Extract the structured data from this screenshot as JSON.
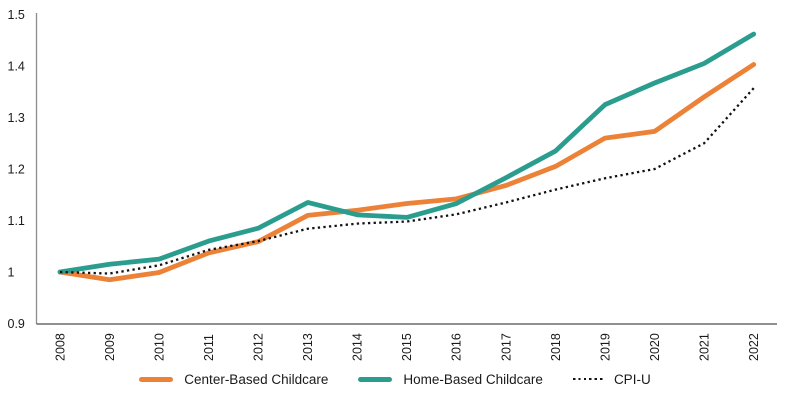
{
  "chart_data": {
    "type": "line",
    "title": "",
    "xlabel": "",
    "ylabel": "",
    "grid": false,
    "legend_position": "bottom",
    "x": [
      2008,
      2009,
      2010,
      2011,
      2012,
      2013,
      2014,
      2015,
      2016,
      2017,
      2018,
      2019,
      2020,
      2021,
      2022
    ],
    "ylim": [
      0.9,
      1.5
    ],
    "yticks": [
      {
        "value": 0.9,
        "label": "0.9"
      },
      {
        "value": 1.0,
        "label": "1"
      },
      {
        "value": 1.1,
        "label": "1.1"
      },
      {
        "value": 1.2,
        "label": "1.2"
      },
      {
        "value": 1.3,
        "label": "1.3"
      },
      {
        "value": 1.4,
        "label": "1.4"
      },
      {
        "value": 1.5,
        "label": "1.5"
      }
    ],
    "series": [
      {
        "name": "Center-Based Childcare",
        "color": "#EC8237",
        "line_style": "solid",
        "values": [
          1.0,
          0.985,
          0.999,
          1.037,
          1.059,
          1.11,
          1.12,
          1.133,
          1.142,
          1.168,
          1.205,
          1.26,
          1.273,
          1.34,
          1.403
        ]
      },
      {
        "name": "Home-Based Childcare",
        "color": "#2A9D8E",
        "line_style": "solid",
        "values": [
          1.0,
          1.015,
          1.025,
          1.06,
          1.085,
          1.135,
          1.111,
          1.106,
          1.133,
          1.183,
          1.235,
          1.325,
          1.367,
          1.405,
          1.462
        ]
      },
      {
        "name": "CPI-U",
        "color": "#111111",
        "line_style": "dotted",
        "values": [
          1.0,
          0.997,
          1.013,
          1.043,
          1.06,
          1.084,
          1.094,
          1.098,
          1.112,
          1.135,
          1.16,
          1.182,
          1.2,
          1.25,
          1.357
        ]
      }
    ]
  },
  "axis_style": {
    "text_color": "#1a1a1a",
    "y_axis_color": "#8c8c8c",
    "x_axis_color": "#4d4d4d"
  }
}
